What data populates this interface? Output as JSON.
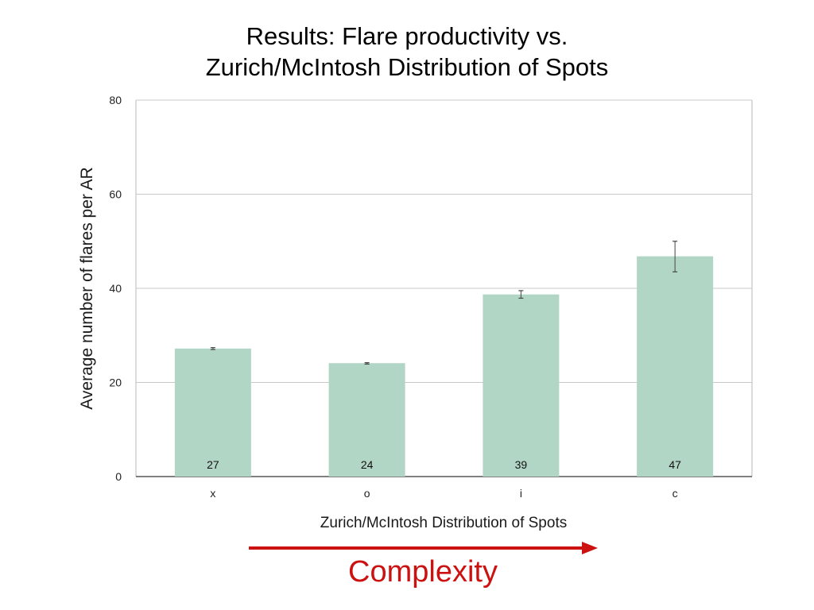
{
  "slide": {
    "title_line1": "Results: Flare productivity vs.",
    "title_line2": "Zurich/McIntosh Distribution of Spots",
    "complexity_label": "Complexity",
    "arrow_color": "#cc1111"
  },
  "chart_data": {
    "type": "bar",
    "categories": [
      "x",
      "o",
      "i",
      "c"
    ],
    "values": [
      27,
      24,
      39,
      47
    ],
    "bar_heights": [
      27.2,
      24.1,
      38.7,
      46.8
    ],
    "error_bars": [
      [
        27.0,
        27.4
      ],
      [
        23.9,
        24.2
      ],
      [
        37.9,
        39.5
      ],
      [
        43.5,
        50.0
      ]
    ],
    "data_labels": [
      "27",
      "24",
      "39",
      "47"
    ],
    "xlabel": "Zurich/McIntosh Distribution of Spots",
    "ylabel": "Average number of flares per AR",
    "ylim": [
      0,
      80
    ],
    "yticks": [
      "0",
      "20",
      "40",
      "60",
      "80"
    ],
    "grid": true,
    "bar_color": "#b2d6c5",
    "legend": "none"
  }
}
